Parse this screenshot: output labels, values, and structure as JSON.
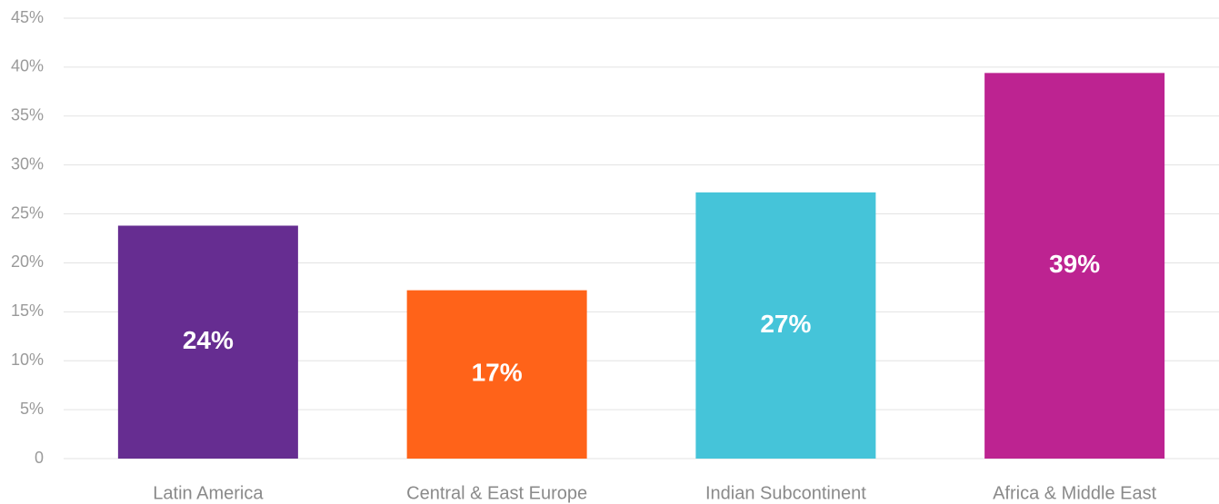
{
  "chart_data": {
    "type": "bar",
    "categories": [
      "Latin America",
      "Central & East Europe",
      "Indian Subcontinent",
      "Africa & Middle East"
    ],
    "values": [
      23.8,
      17.2,
      27.2,
      39.4
    ],
    "value_labels": [
      "24%",
      "17%",
      "27%",
      "39%"
    ],
    "colors": [
      "#662d91",
      "#ff6319",
      "#45c4d9",
      "#bd2391"
    ],
    "ylim": [
      0,
      45
    ],
    "yticks": [
      0,
      {
        "value": 5,
        "label": "5%"
      },
      {
        "value": 10,
        "label": "10%"
      },
      {
        "value": 15,
        "label": "15%"
      },
      {
        "value": 20,
        "label": "20%"
      },
      {
        "value": 25,
        "label": "25%"
      },
      {
        "value": 30,
        "label": "30%"
      },
      {
        "value": 35,
        "label": "35%"
      },
      {
        "value": 40,
        "label": "40%"
      },
      {
        "value": 45,
        "label": "45%"
      }
    ],
    "grid": true
  }
}
